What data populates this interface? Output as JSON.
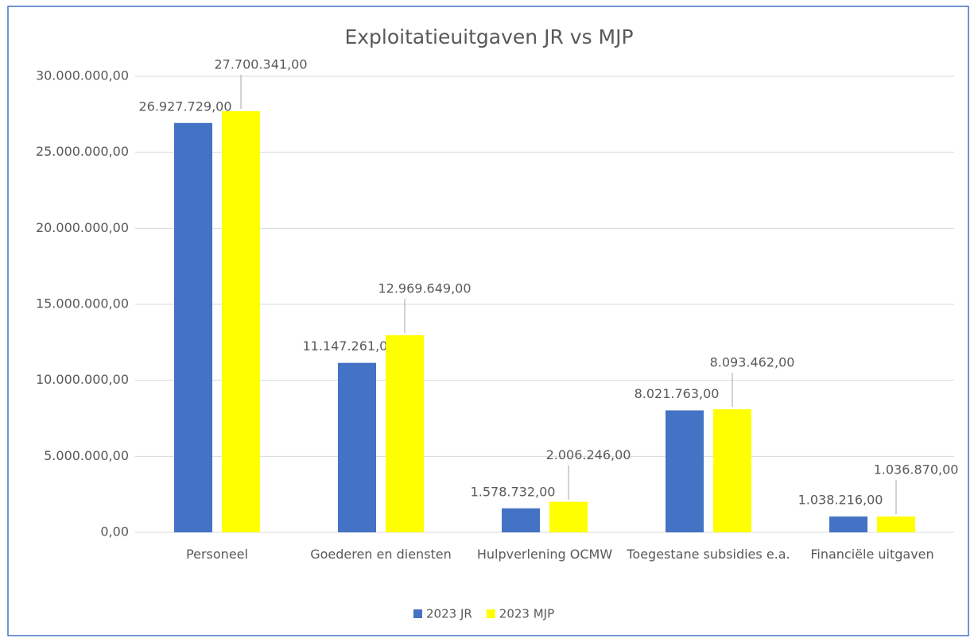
{
  "chart_data": {
    "type": "bar",
    "title": "Exploitatieuitgaven JR vs MJP",
    "categories": [
      "Personeel",
      "Goederen en diensten",
      "Hulpverlening OCMW",
      "Toegestane subsidies e.a.",
      "Financiële uitgaven"
    ],
    "series": [
      {
        "name": "2023 JR",
        "color": "#4472c4",
        "values": [
          26927729,
          11147261,
          1578732,
          8021763,
          1038216
        ],
        "value_labels": [
          "26.927.729,00",
          "11.147.261,00",
          "1.578.732,00",
          "8.021.763,00",
          "1.038.216,00"
        ]
      },
      {
        "name": "2023 MJP",
        "color": "#ffff00",
        "values": [
          27700341,
          12969649,
          2006246,
          8093462,
          1036870
        ],
        "value_labels": [
          "27.700.341,00",
          "12.969.649,00",
          "2.006.246,00",
          "8.093.462,00",
          "1.036.870,00"
        ]
      }
    ],
    "ylim": [
      0,
      30000000
    ],
    "yticks": [
      {
        "value": 0,
        "label": "0,00"
      },
      {
        "value": 5000000,
        "label": "5.000.000,00"
      },
      {
        "value": 10000000,
        "label": "10.000.000,00"
      },
      {
        "value": 15000000,
        "label": "15.000.000,00"
      },
      {
        "value": 20000000,
        "label": "20.000.000,00"
      },
      {
        "value": 25000000,
        "label": "25.000.000,00"
      },
      {
        "value": 30000000,
        "label": "30.000.000,00"
      }
    ],
    "grid": true,
    "legend": "bottom"
  }
}
